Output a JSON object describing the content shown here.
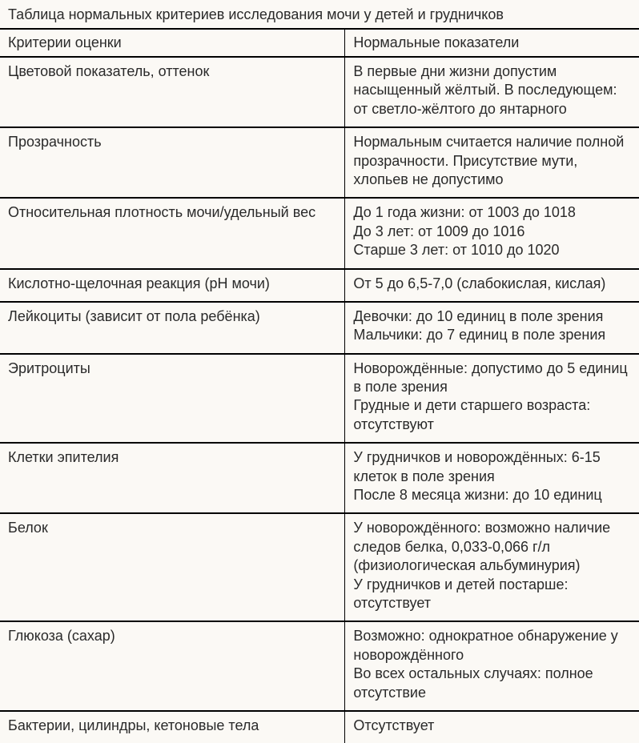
{
  "table": {
    "title": "Таблица нормальных критериев исследования мочи у детей и грудничков",
    "columns": [
      "Критерии оценки",
      "Нормальные показатели"
    ],
    "rows": [
      {
        "criteria": "Цветовой показатель, оттенок",
        "value": "В первые дни жизни допустим насыщенный жёлтый. В последующем: от светло-жёлтого до янтарного"
      },
      {
        "criteria": "Прозрачность",
        "value": "Нормальным считается наличие полной прозрачности. Присутствие мути, хлопьев не допустимо"
      },
      {
        "criteria": "Относительная плотность мочи/удельный вес",
        "value": "До 1 года жизни: от 1003 до 1018\nДо 3 лет: от 1009 до 1016\nСтарше 3 лет: от 1010 до 1020"
      },
      {
        "criteria": "Кислотно-щелочная реакция (pH мочи)",
        "value": "От 5 до 6,5-7,0 (слабокислая, кислая)"
      },
      {
        "criteria": "Лейкоциты (зависит от пола ребёнка)",
        "value": "Девочки: до 10 единиц в поле зрения\nМальчики: до 7 единиц в поле зрения"
      },
      {
        "criteria": "Эритроциты",
        "value": "Новорождённые: допустимо до 5 единиц в поле зрения\nГрудные и дети старшего возраста: отсутствуют"
      },
      {
        "criteria": "Клетки эпителия",
        "value": "У грудничков и новорождённых: 6-15 клеток в поле зрения\nПосле 8 месяца жизни: до 10 единиц"
      },
      {
        "criteria": "Белок",
        "value": "У новорождённого: возможно наличие следов белка, 0,033-0,066 г/л (физиологическая альбуминурия)\nУ грудничков и детей постарше: отсутствует"
      },
      {
        "criteria": "Глюкоза (сахар)",
        "value": "Возможно: однократное обнаружение у новорождённого\nВо всех остальных случаях: полное отсутствие"
      },
      {
        "criteria": "Бактерии, цилиндры, кетоновые тела",
        "value": "Отсутствует"
      }
    ],
    "styling": {
      "background_color": "#fbf9f5",
      "text_color": "#2a2a2a",
      "border_color": "#000000",
      "row_border_width": 2,
      "column_border_width": 1,
      "font_size": 18,
      "font_family": "Arial",
      "left_column_width_pct": 54,
      "cell_padding": "6px 10px 10px 10px",
      "line_height": 1.3
    }
  }
}
